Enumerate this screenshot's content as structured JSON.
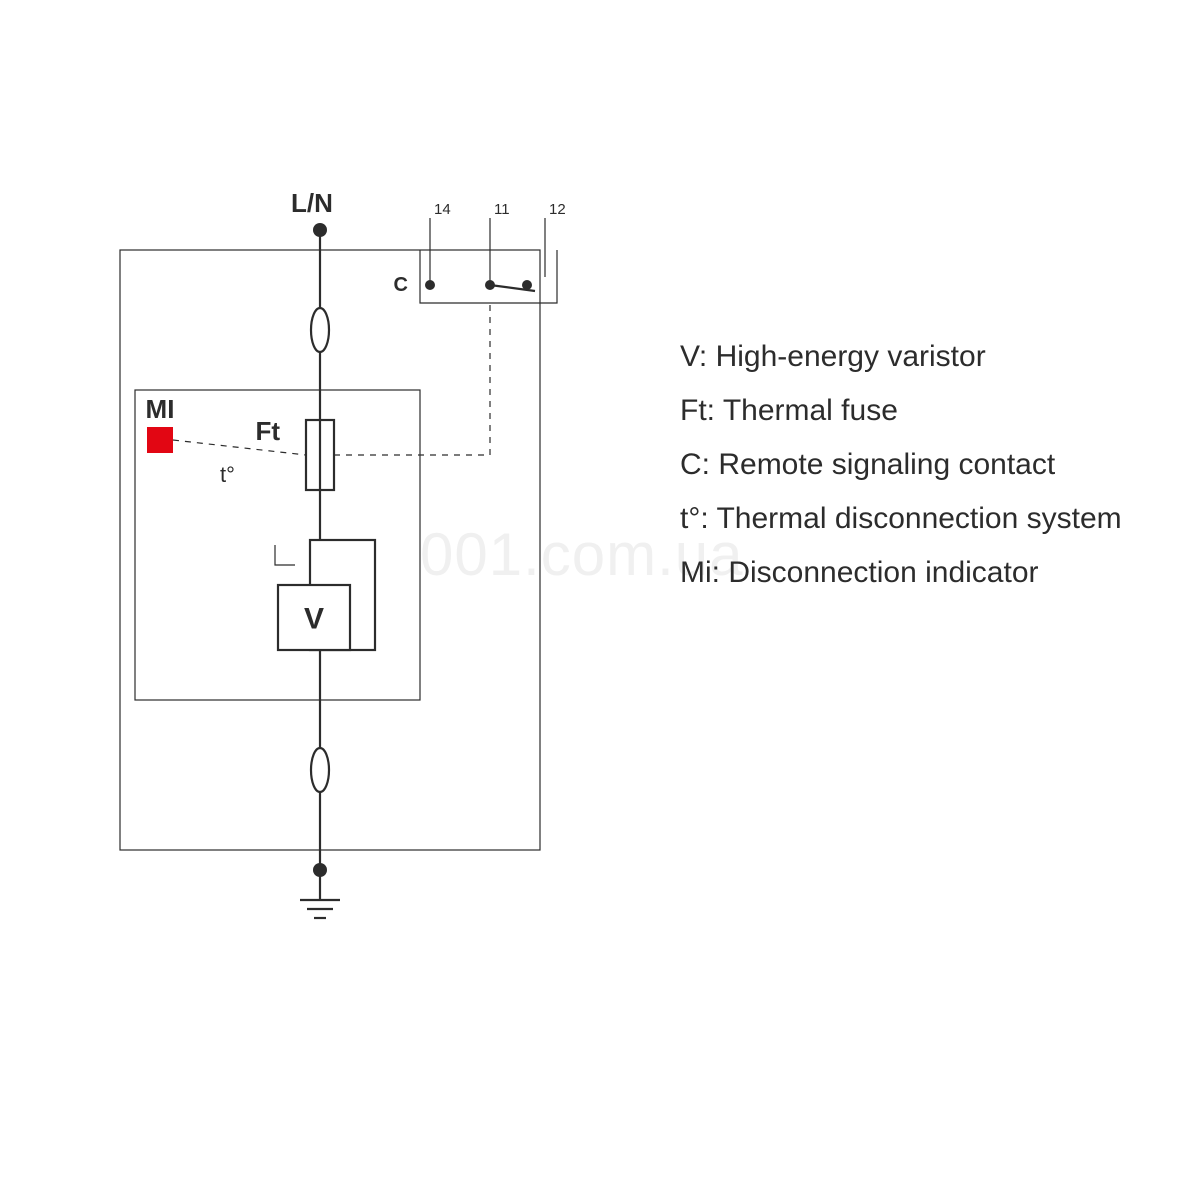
{
  "diagram": {
    "type": "schematic",
    "stroke_color": "#2c2c2c",
    "stroke_width": 2.2,
    "thin_stroke_width": 1.2,
    "dash_pattern": "6,6",
    "background_color": "#ffffff",
    "legend_font_size": 30,
    "legend_color": "#2c2c2c",
    "label_font_size": 26,
    "label_font_weight": "600",
    "small_label_font_size": 15,
    "indicator_color": "#e20613",
    "node_radius": 7,
    "terminals": {
      "top": "L/N",
      "contact": "C",
      "pins": [
        "14",
        "11",
        "12"
      ]
    },
    "labels": {
      "mi": "MI",
      "ft": "Ft",
      "t": "t°",
      "v": "V"
    },
    "legend": [
      {
        "key": "V",
        "text": "High-energy varistor"
      },
      {
        "key": "Ft",
        "text": "Thermal fuse"
      },
      {
        "key": "C",
        "text": "Remote signaling contact"
      },
      {
        "key": "t°",
        "text": "Thermal disconnection system"
      },
      {
        "key": "Mi",
        "text": "Disconnection indicator"
      }
    ],
    "watermark": "001.com.ua"
  }
}
